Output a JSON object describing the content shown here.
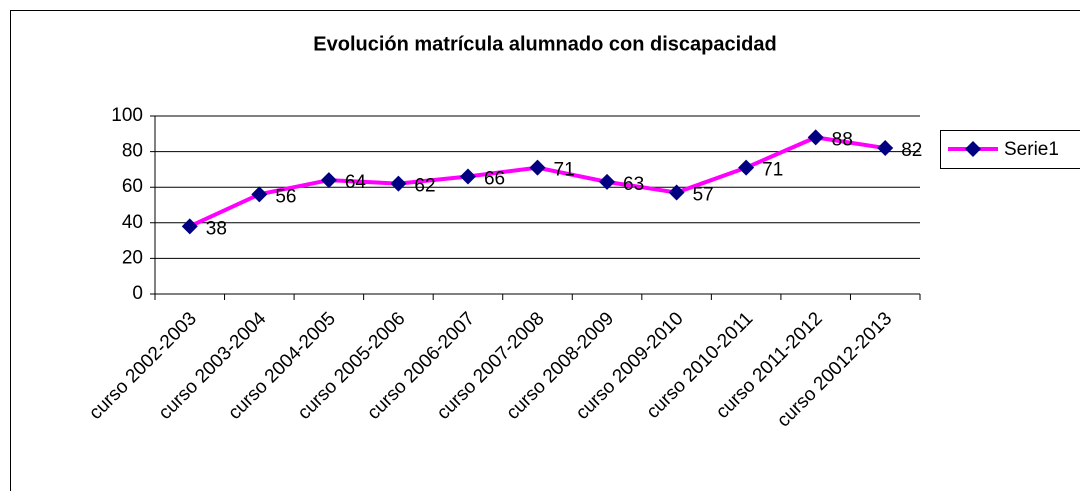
{
  "chart_data": {
    "type": "line",
    "title": "Evolución matrícula alumnado con discapacidad",
    "categories": [
      "curso 2002-2003",
      "curso 2003-2004",
      "curso 2004-2005",
      "curso 2005-2006",
      "curso 2006-2007",
      "curso 2007-2008",
      "curso 2008-2009",
      "curso 2009-2010",
      "curso 2010-2011",
      "curso 2011-2012",
      "curso 20012-2013"
    ],
    "series": [
      {
        "name": "Serie1",
        "color": "#ff00ff",
        "marker_color": "#000080",
        "values": [
          38,
          56,
          64,
          62,
          66,
          71,
          63,
          57,
          71,
          88,
          82
        ]
      }
    ],
    "ylim": [
      0,
      100
    ],
    "yticks": [
      0,
      20,
      40,
      60,
      80,
      100
    ],
    "grid": true,
    "legend": "right",
    "data_labels": true
  }
}
